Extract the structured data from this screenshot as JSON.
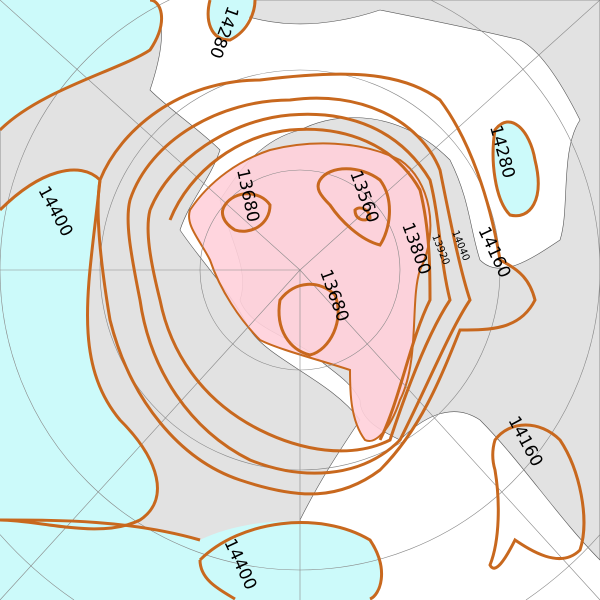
{
  "map": {
    "type": "polar stereographic geopotential height contour map",
    "colors": {
      "land": "#e2e2e2",
      "ocean": "#ffffff",
      "low_fill": "#ffd0da",
      "high_fill": "#ccfafa",
      "contour": "#c8681e",
      "graticule": "#888888"
    },
    "contour_labels": [
      {
        "id": "top",
        "text": "14280"
      },
      {
        "id": "right",
        "text": "14280"
      },
      {
        "id": "left",
        "text": "14400"
      },
      {
        "id": "low-west",
        "text": "13680"
      },
      {
        "id": "low-north",
        "text": "13560"
      },
      {
        "id": "low-center",
        "text": "13680"
      },
      {
        "id": "ring-13800",
        "text": "13800"
      },
      {
        "id": "ring-13920",
        "text": "13920"
      },
      {
        "id": "ring-14040",
        "text": "14040"
      },
      {
        "id": "ring-14160",
        "text": "14160"
      },
      {
        "id": "lower-right",
        "text": "14160"
      },
      {
        "id": "bottom",
        "text": "14400"
      }
    ]
  }
}
